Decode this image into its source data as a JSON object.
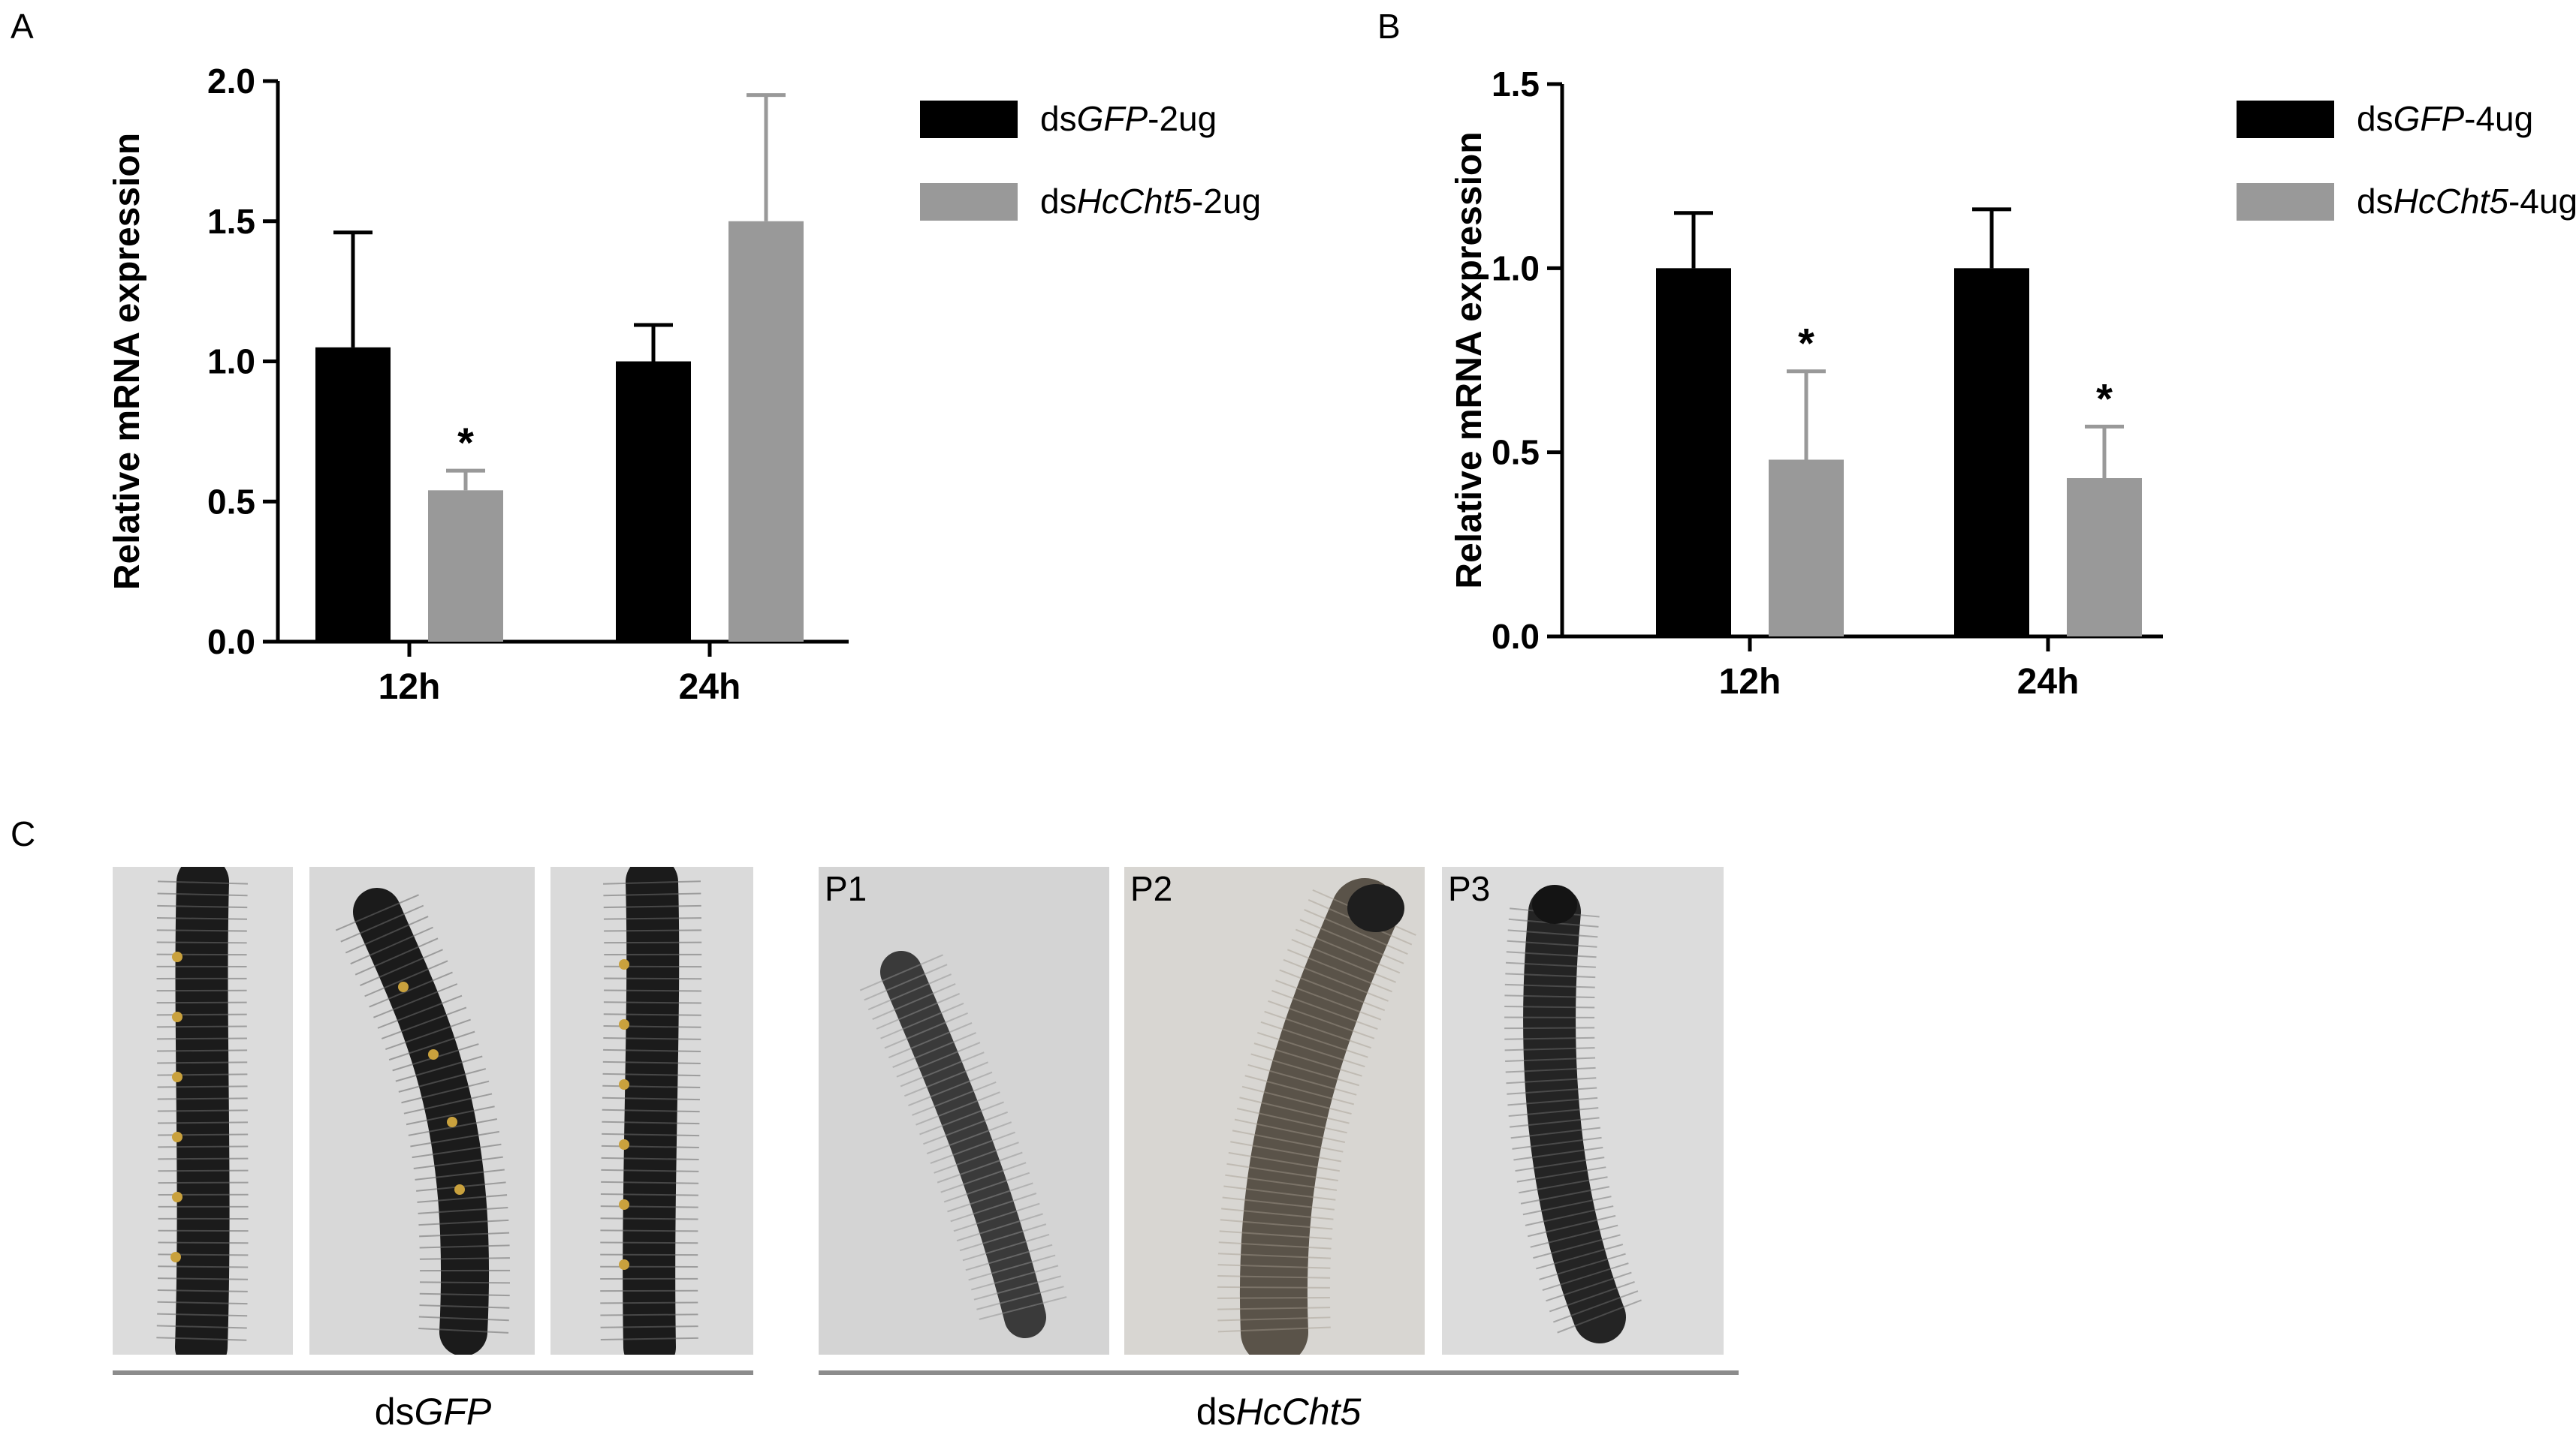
{
  "panel_letters": {
    "a": "A",
    "b": "B",
    "c": "C"
  },
  "chart_data": [
    {
      "panel": "A",
      "type": "bar",
      "ylabel": "Relative mRNA expression",
      "ylim": [
        0,
        2.0
      ],
      "yticks": [
        "0.0",
        "0.5",
        "1.0",
        "1.5",
        "2.0"
      ],
      "categories": [
        "12h",
        "24h"
      ],
      "series": [
        {
          "name": "dsGFP-2ug",
          "legend_prefix": "ds",
          "legend_italic": "GFP",
          "legend_suffix": "-2ug",
          "color": "#000000",
          "values": [
            1.05,
            1.0
          ],
          "errors": [
            0.41,
            0.13
          ],
          "marks": [
            "",
            ""
          ]
        },
        {
          "name": "dsHcCht5-2ug",
          "legend_prefix": "ds",
          "legend_italic": "HcCht5",
          "legend_suffix": "-2ug",
          "color": "#999999",
          "values": [
            0.54,
            1.5
          ],
          "errors": [
            0.07,
            0.45
          ],
          "marks": [
            "*",
            ""
          ]
        }
      ],
      "legend_position": "right"
    },
    {
      "panel": "B",
      "type": "bar",
      "ylabel": "Relative mRNA expression",
      "ylim": [
        0,
        1.5
      ],
      "yticks": [
        "0.0",
        "0.5",
        "1.0",
        "1.5"
      ],
      "categories": [
        "12h",
        "24h"
      ],
      "series": [
        {
          "name": "dsGFP-4ug",
          "legend_prefix": "ds",
          "legend_italic": "GFP",
          "legend_suffix": "-4ug",
          "color": "#000000",
          "values": [
            1.0,
            1.0
          ],
          "errors": [
            0.15,
            0.16
          ],
          "marks": [
            "",
            ""
          ]
        },
        {
          "name": "dsHcCht5-4ug",
          "legend_prefix": "ds",
          "legend_italic": "HcCht5",
          "legend_suffix": "-4ug",
          "color": "#999999",
          "values": [
            0.48,
            0.43
          ],
          "errors": [
            0.24,
            0.14
          ],
          "marks": [
            "*",
            "*"
          ]
        }
      ],
      "legend_position": "right"
    }
  ],
  "panel_c": {
    "photo_labels": [
      "P1",
      "P2",
      "P3"
    ],
    "groups": [
      {
        "prefix": "ds",
        "italic": "GFP"
      },
      {
        "prefix": "ds",
        "italic": "HcCht5"
      }
    ]
  },
  "colors": {
    "control": "#000000",
    "treatment": "#999999",
    "rule": "#8c8c8c"
  }
}
